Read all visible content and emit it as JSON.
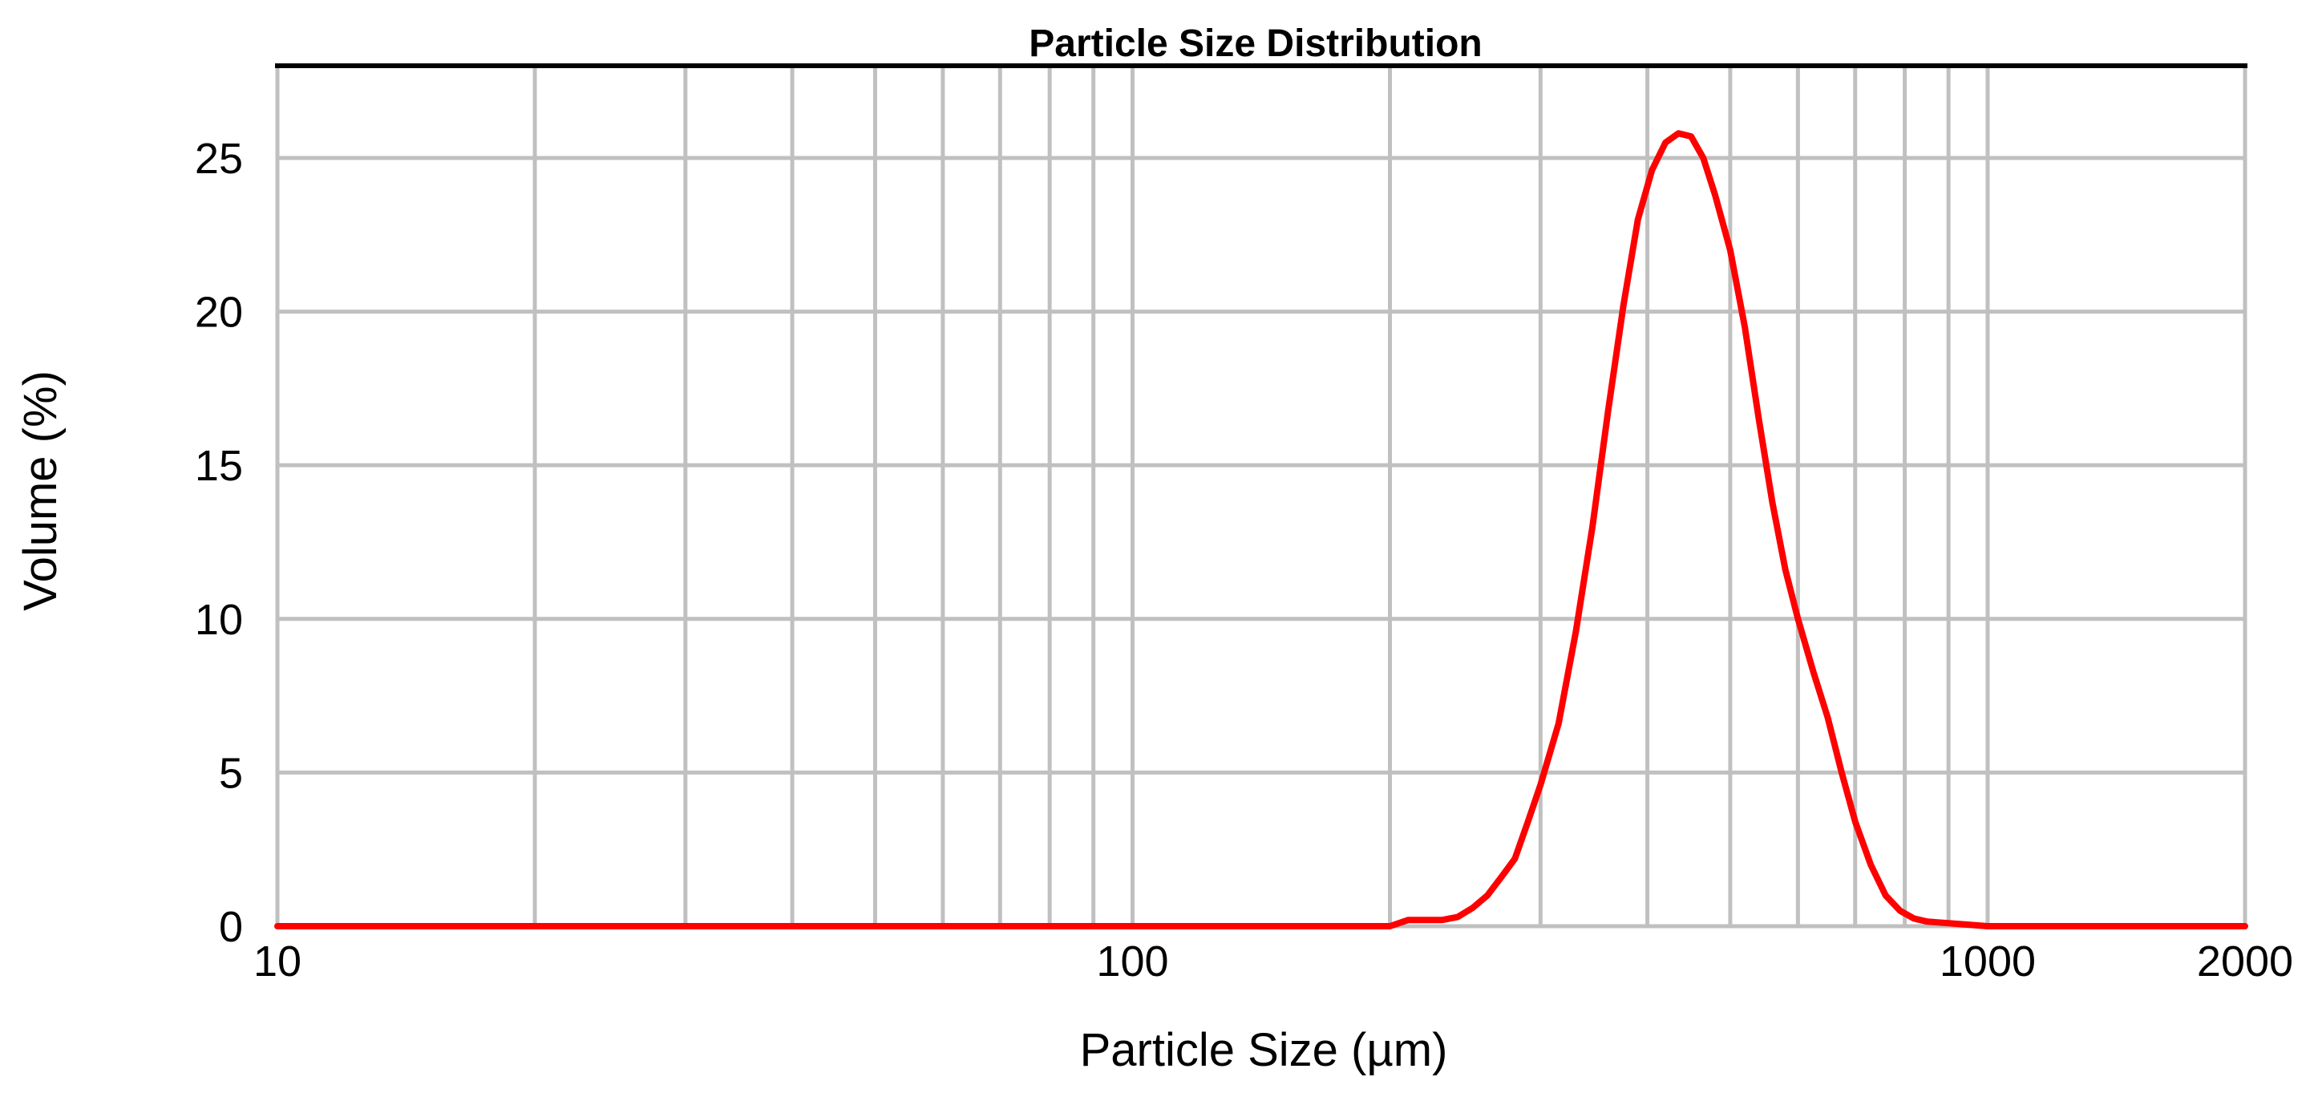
{
  "chart_data": {
    "type": "line",
    "title": "Particle Size Distribution",
    "xlabel": "Particle Size (µm)",
    "ylabel": "Volume (%)",
    "x_scale": "log",
    "xlim": [
      10,
      2000
    ],
    "ylim": [
      0,
      28
    ],
    "x_ticks": [
      10,
      100,
      1000,
      2000
    ],
    "x_tick_labels": [
      "10",
      "100",
      "1000",
      "2000"
    ],
    "y_ticks": [
      0,
      5,
      10,
      15,
      20,
      25
    ],
    "y_tick_labels": [
      "0",
      "5",
      "10",
      "15",
      "20",
      "25"
    ],
    "grid": true,
    "legend": "none",
    "colors": {
      "series": "#ff0000",
      "grid": "#c0c0c0",
      "frame_top": "#000000"
    },
    "series": [
      {
        "x": [
          10,
          50,
          100,
          150,
          200,
          210,
          230,
          240,
          250,
          260,
          270,
          280,
          290,
          300,
          315,
          330,
          345,
          360,
          375,
          390,
          405,
          420,
          435,
          450,
          465,
          480,
          500,
          520,
          540,
          560,
          580,
          600,
          625,
          650,
          675,
          700,
          730,
          760,
          790,
          820,
          850,
          900,
          950,
          1000,
          1200,
          1500,
          2000
        ],
        "y": [
          0,
          0,
          0,
          0,
          0,
          0.2,
          0.2,
          0.3,
          0.6,
          1.0,
          1.6,
          2.2,
          3.4,
          4.6,
          6.6,
          9.6,
          13.0,
          16.8,
          20.2,
          23.0,
          24.6,
          25.5,
          25.8,
          25.7,
          25.0,
          23.8,
          22.0,
          19.5,
          16.5,
          13.8,
          11.6,
          10.0,
          8.3,
          6.8,
          5.0,
          3.4,
          2.0,
          1.0,
          0.5,
          0.25,
          0.15,
          0.1,
          0.05,
          0,
          0,
          0,
          0
        ]
      }
    ]
  }
}
